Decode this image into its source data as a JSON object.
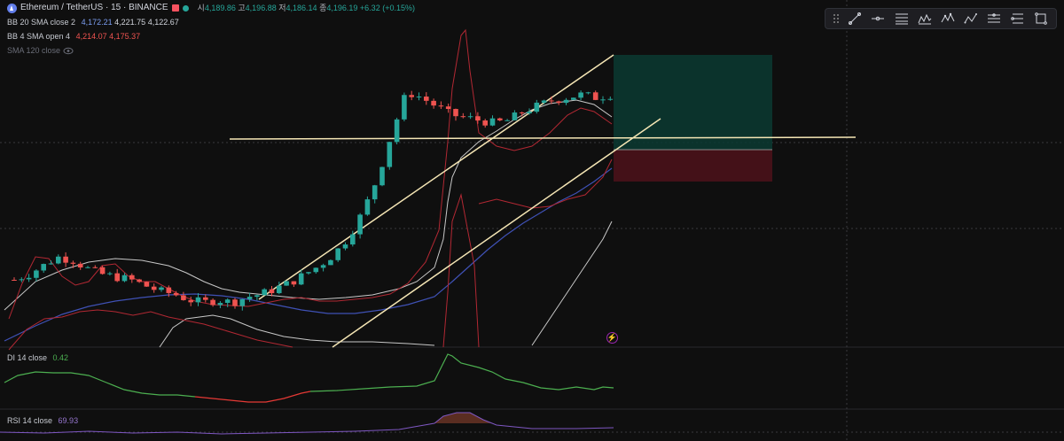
{
  "header": {
    "symbol": "Ethereum / TetherUS · 15 · BINANCE",
    "open_label": "시",
    "open": "4,189.86",
    "high_label": "고",
    "high": "4,196.88",
    "low_label": "저",
    "low": "4,186.14",
    "close_label": "종",
    "close": "4,196.19",
    "change": "+6.32 (+0.15%)"
  },
  "indicators": {
    "bb20": {
      "name": "BB 20 SMA close 2",
      "v1": "4,172.21",
      "v2": "4,221.75",
      "v3": "4,122.67"
    },
    "bb4": {
      "name": "BB 4 SMA open 4",
      "v1": "4,214.07",
      "v2": "4,175.37"
    },
    "sma120": {
      "name": "SMA 120 close"
    },
    "di": {
      "name": "DI 14 close",
      "value": "0.42"
    },
    "rsi": {
      "name": "RSI 14 close",
      "value": "69.93"
    }
  },
  "toolbar": {
    "tools": [
      "trend-line-icon",
      "horizontal-ray-icon",
      "fib-retracement-icon",
      "pattern-icon",
      "elliott-wave-icon",
      "abcd-icon",
      "parallel-channel-icon",
      "position-icon",
      "rectangle-icon"
    ]
  },
  "colors": {
    "up": "#26a69a",
    "down": "#ef5350",
    "bb20": "#c8c8c8",
    "bb4": "#b22833",
    "sma": "#3f51b5",
    "trendline": "#f5e6b5",
    "di_pos": "#4caf50",
    "di_neg": "#e53935",
    "rsi": "#7e57c2"
  },
  "chart_data": {
    "type": "candlestick",
    "trend": [
      4148,
      4150,
      4153,
      4156,
      4155,
      4152,
      4150,
      4149,
      4148,
      4146,
      4144,
      4143,
      4141,
      4140,
      4141,
      4140,
      4142,
      4143,
      4145,
      4147,
      4150,
      4153,
      4157,
      4163,
      4172,
      4184,
      4200,
      4214,
      4212,
      4209,
      4206,
      4205,
      4204,
      4203,
      4204,
      4207,
      4209,
      4211,
      4212,
      4213,
      4212,
      4213
    ]
  }
}
